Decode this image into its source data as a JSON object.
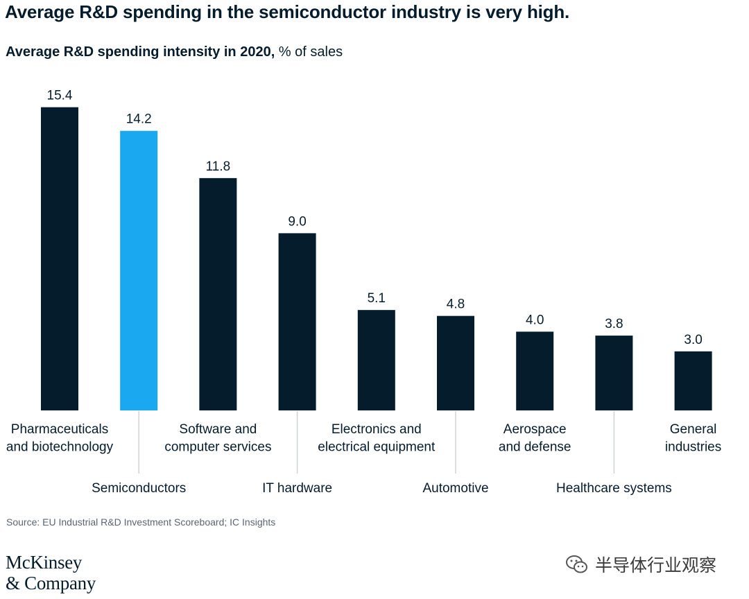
{
  "title": "Average R&D spending in the semiconductor industry is very high.",
  "subtitle_bold": "Average R&D spending intensity in 2020,",
  "subtitle_unit": " % of sales",
  "source": "Source: EU Industrial R&D Investment Scoreboard; IC Insights",
  "logo": {
    "line1": "McKinsey",
    "line2": "& Company"
  },
  "watermark": {
    "text": "半导体行业观察",
    "icon": "wechat-icon"
  },
  "colors": {
    "bar": "#051c2c",
    "highlight": "#1aa8f0",
    "leader": "#d0d3d6"
  },
  "chart_data": {
    "type": "bar",
    "title": "Average R&D spending intensity in 2020",
    "ylabel": "% of sales",
    "ylim": [
      0,
      16
    ],
    "grid": false,
    "legend": "none",
    "categories": [
      [
        "Pharmaceuticals",
        "and biotechnology"
      ],
      [
        "Semiconductors"
      ],
      [
        "Software and",
        "computer services"
      ],
      [
        "IT hardware"
      ],
      [
        "Electronics and",
        "electrical equipment"
      ],
      [
        "Automotive"
      ],
      [
        "Aerospace",
        "and defense"
      ],
      [
        "Healthcare systems"
      ],
      [
        "General",
        "industries"
      ]
    ],
    "values": [
      15.4,
      14.2,
      11.8,
      9.0,
      5.1,
      4.8,
      4.0,
      3.8,
      3.0
    ],
    "value_labels": [
      "15.4",
      "14.2",
      "11.8",
      "9.0",
      "5.1",
      "4.8",
      "4.0",
      "3.8",
      "3.0"
    ],
    "highlight_index": 1
  }
}
